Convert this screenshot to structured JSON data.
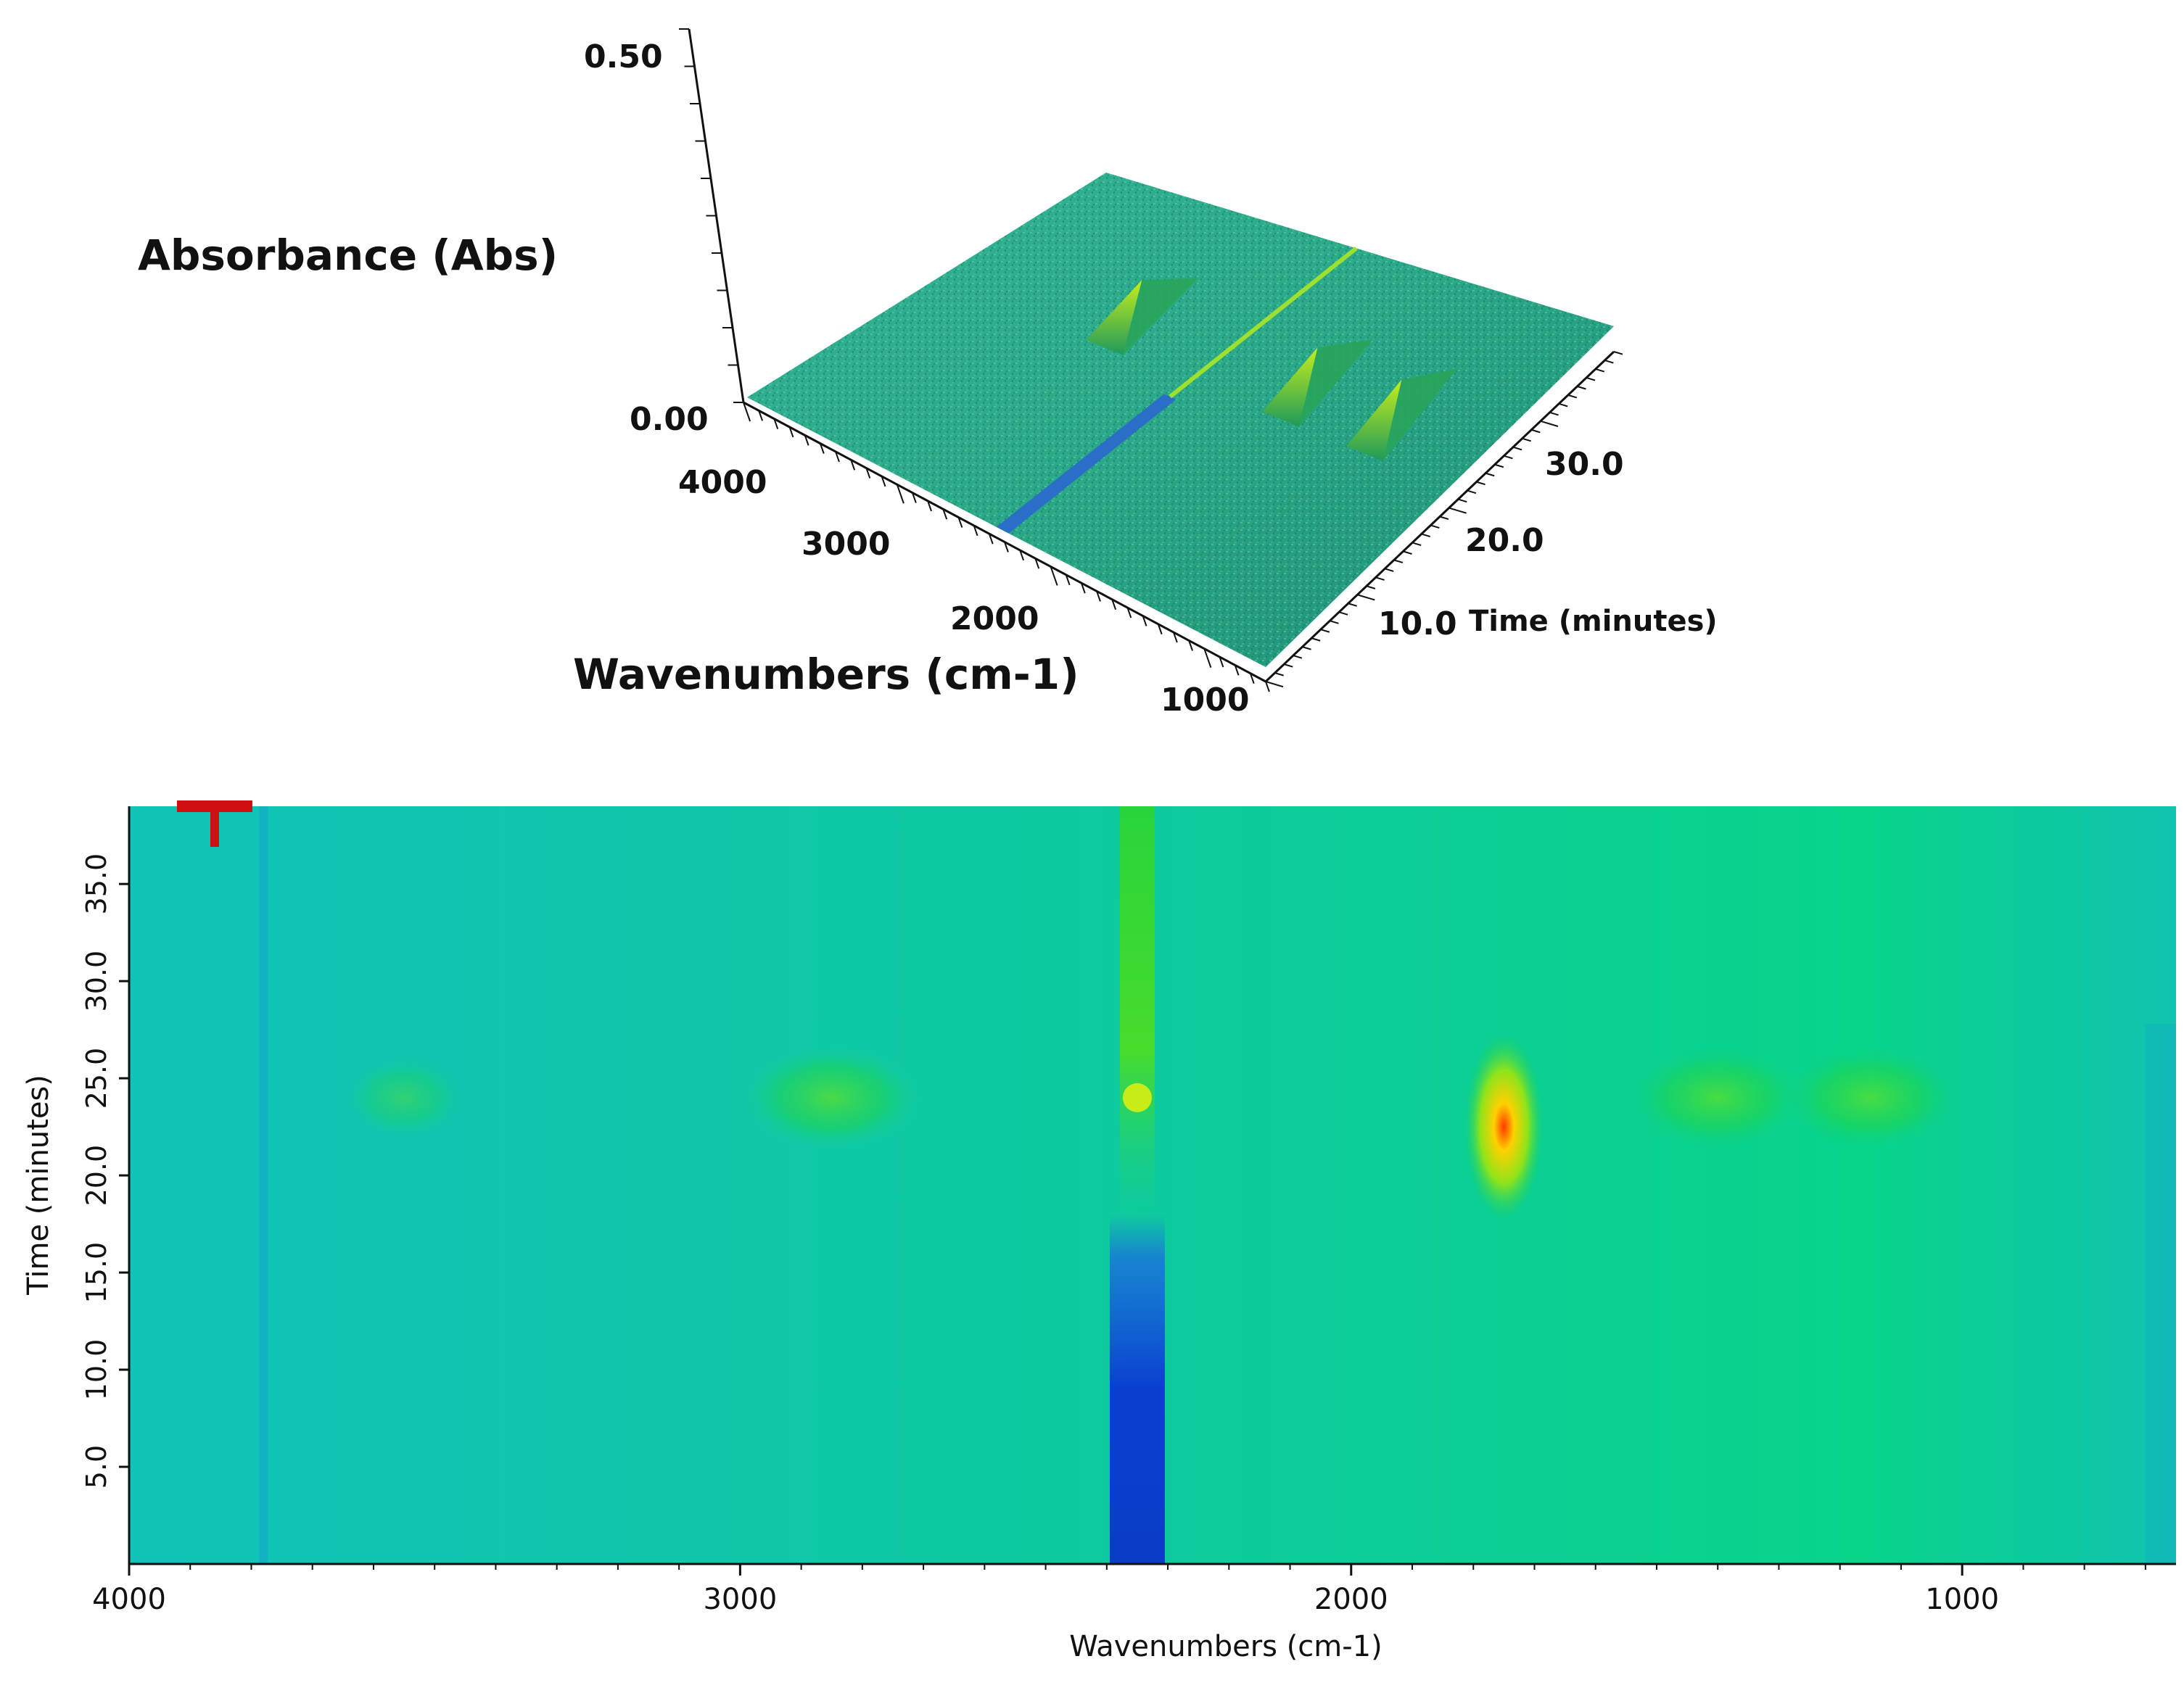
{
  "chart_data": [
    {
      "type": "surface",
      "title": "",
      "zlabel": "Absorbance (Abs)",
      "xlabel": "Wavenumbers (cm-1)",
      "ylabel": "Time (minutes)",
      "z_ticks": [
        "0.50",
        "0.00"
      ],
      "x_ticks": [
        "4000",
        "3000",
        "2000",
        "1000"
      ],
      "y_ticks": [
        "10.0",
        "20.0",
        "30.0"
      ],
      "zlim": [
        0.0,
        0.5
      ],
      "xlim": [
        4000,
        650
      ],
      "ylim": [
        0,
        38
      ],
      "peaks": [
        {
          "wavenumber": 2350,
          "kind": "trough",
          "time_range": [
            0,
            18
          ]
        },
        {
          "wavenumber": 2900,
          "kind": "peak",
          "time": 24
        },
        {
          "wavenumber": 1750,
          "kind": "peak",
          "time": 24
        },
        {
          "wavenumber": 1200,
          "kind": "peak",
          "time": 24
        }
      ]
    },
    {
      "type": "heatmap",
      "title": "",
      "xlabel": "Wavenumbers (cm-1)",
      "ylabel": "Time (minutes)",
      "x_ticks": [
        "4000",
        "3000",
        "2000",
        "1000"
      ],
      "y_ticks": [
        "5.0",
        "10.0",
        "15.0",
        "20.0",
        "25.0",
        "30.0",
        "35.0"
      ],
      "xlim": [
        4000,
        650
      ],
      "ylim": [
        0,
        39
      ],
      "grid": false,
      "features": [
        {
          "wavenumber": 3780,
          "kind": "faint-blue-line",
          "time_range": [
            0,
            39
          ]
        },
        {
          "wavenumber": 3550,
          "kind": "weak-peak",
          "time": 24
        },
        {
          "wavenumber": 2850,
          "kind": "peak",
          "time": 24
        },
        {
          "wavenumber": 2350,
          "kind": "blue-band",
          "time_range": [
            0,
            18
          ]
        },
        {
          "wavenumber": 2350,
          "kind": "green-band",
          "time_range": [
            18,
            39
          ]
        },
        {
          "wavenumber": 1750,
          "kind": "hotspot",
          "time": 24,
          "color": "#ffd000"
        },
        {
          "wavenumber": 1400,
          "kind": "peak",
          "time": 24
        },
        {
          "wavenumber": 1150,
          "kind": "peak",
          "time": 24
        }
      ],
      "marker": {
        "wavenumber": 3860,
        "time": 39,
        "color": "#d01010"
      }
    }
  ]
}
